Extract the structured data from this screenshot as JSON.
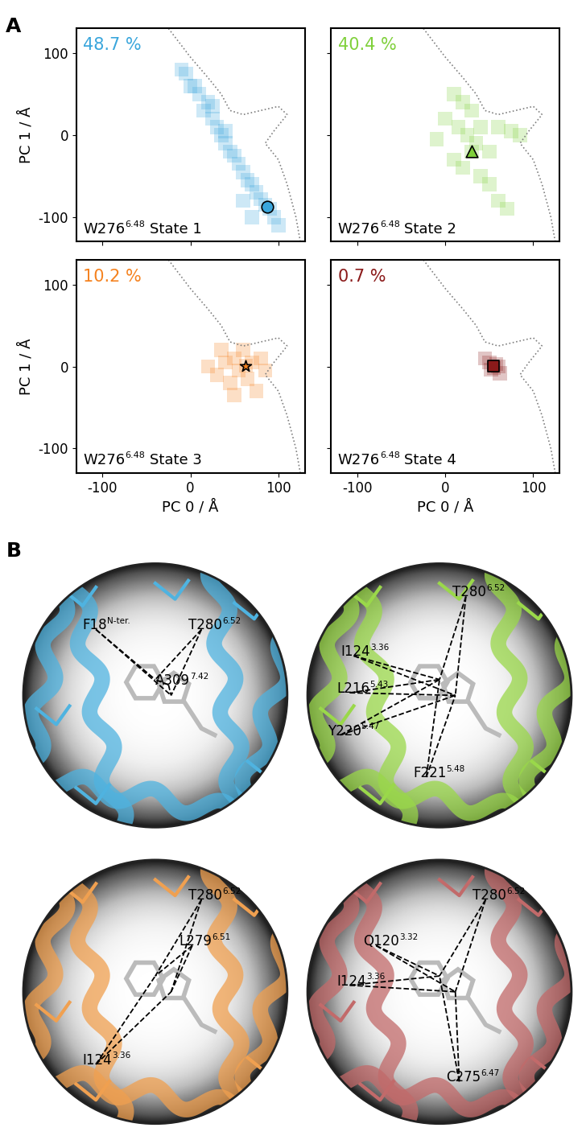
{
  "panel_labels": [
    "A",
    "B"
  ],
  "chart_data": [
    {
      "type": "scatter",
      "annotation": "48.7 %",
      "residue": "W276",
      "residue_superscript": "6.48",
      "title": "State 1",
      "color": "#3aa6dc",
      "marker": "circle",
      "tick_labels": "y",
      "y_label": "PC 1 / Å",
      "x": [
        -10,
        -5,
        0,
        5,
        10,
        20,
        15,
        25,
        30,
        35,
        40,
        45,
        50,
        55,
        60,
        65,
        70,
        75,
        80,
        85,
        90,
        95,
        100,
        70,
        60,
        25,
        40
      ],
      "y": [
        80,
        75,
        60,
        60,
        50,
        40,
        30,
        20,
        10,
        0,
        -10,
        -20,
        -25,
        -35,
        -45,
        -55,
        -60,
        -70,
        -78,
        -85,
        -90,
        -100,
        -110,
        -100,
        -80,
        35,
        5
      ],
      "marker_point": {
        "x": 87,
        "y": -87
      },
      "boundary": {
        "x": [
          -25,
          0,
          20,
          35,
          45,
          60,
          80,
          100,
          110,
          95,
          85,
          100,
          110,
          120,
          125
        ],
        "y": [
          130,
          95,
          70,
          50,
          30,
          25,
          30,
          35,
          25,
          5,
          -10,
          -30,
          -60,
          -100,
          -130
        ],
        "line_style": "dotted"
      },
      "xlim": [
        -130,
        130
      ],
      "ylim": [
        -130,
        130
      ],
      "xticks": [
        -100,
        0,
        100
      ],
      "yticks": [
        -100,
        0,
        100
      ]
    },
    {
      "type": "scatter",
      "annotation": "40.4 %",
      "residue": "W276",
      "residue_superscript": "6.48",
      "title": "State 2",
      "color": "#7fd03a",
      "marker": "triangle",
      "tick_labels": false,
      "x": [
        10,
        20,
        30,
        0,
        15,
        40,
        60,
        25,
        35,
        50,
        30,
        10,
        20,
        40,
        50,
        60,
        70,
        75,
        85,
        -10
      ],
      "y": [
        50,
        40,
        30,
        20,
        10,
        10,
        10,
        0,
        -10,
        -20,
        -20,
        -30,
        -40,
        -50,
        -60,
        -80,
        -90,
        5,
        0,
        -5
      ],
      "marker_point": {
        "x": 30,
        "y": -20
      },
      "boundary": {
        "x": [
          -25,
          0,
          20,
          35,
          45,
          60,
          80,
          100,
          110,
          95,
          85,
          100,
          110,
          120,
          125
        ],
        "y": [
          130,
          95,
          70,
          50,
          30,
          25,
          30,
          35,
          25,
          5,
          -10,
          -30,
          -60,
          -100,
          -130
        ],
        "line_style": "dotted"
      },
      "xlim": [
        -130,
        130
      ],
      "ylim": [
        -130,
        130
      ],
      "xticks": [
        -100,
        0,
        100
      ],
      "yticks": [
        -100,
        0,
        100
      ]
    },
    {
      "type": "scatter",
      "annotation": "10.2 %",
      "residue": "W276",
      "residue_superscript": "6.48",
      "title": "State 3",
      "color": "#f5821f",
      "marker": "star",
      "tick_labels": true,
      "x_label": "PC 0 / Å",
      "y_label": "PC 1 / Å",
      "x": [
        20,
        30,
        40,
        45,
        50,
        55,
        60,
        63,
        65,
        70,
        75,
        80,
        85,
        50,
        35
      ],
      "y": [
        0,
        -10,
        5,
        -20,
        10,
        -5,
        20,
        1,
        -15,
        5,
        -30,
        10,
        -5,
        -35,
        20
      ],
      "marker_point": {
        "x": 63,
        "y": 1
      },
      "boundary": {
        "x": [
          -25,
          0,
          20,
          35,
          45,
          60,
          80,
          100,
          110,
          95,
          85,
          100,
          110,
          120,
          125
        ],
        "y": [
          130,
          95,
          70,
          50,
          30,
          25,
          30,
          35,
          25,
          5,
          -10,
          -30,
          -60,
          -100,
          -130
        ],
        "line_style": "dotted"
      },
      "xlim": [
        -130,
        130
      ],
      "ylim": [
        -130,
        130
      ],
      "xticks": [
        -100,
        0,
        100
      ],
      "yticks": [
        -100,
        0,
        100
      ]
    },
    {
      "type": "scatter",
      "annotation": "0.7 %",
      "residue": "W276",
      "residue_superscript": "6.48",
      "title": "State 4",
      "color": "#8b1a1a",
      "marker": "square",
      "tick_labels": "x",
      "x_label": "PC 0 / Å",
      "x": [
        50,
        55,
        58,
        52,
        60,
        45,
        62
      ],
      "y": [
        5,
        -2,
        3,
        -4,
        0,
        10,
        -8
      ],
      "marker_point": {
        "x": 55,
        "y": 1
      },
      "boundary": {
        "x": [
          -25,
          0,
          20,
          35,
          45,
          60,
          80,
          100,
          110,
          95,
          85,
          100,
          110,
          120,
          125
        ],
        "y": [
          130,
          95,
          70,
          50,
          30,
          25,
          30,
          35,
          25,
          5,
          -10,
          -30,
          -60,
          -100,
          -130
        ],
        "line_style": "dotted"
      },
      "xlim": [
        -130,
        130
      ],
      "ylim": [
        -130,
        130
      ],
      "xticks": [
        -100,
        0,
        100
      ],
      "yticks": [
        -100,
        0,
        100
      ]
    }
  ],
  "structures": [
    {
      "color": "#4fb3e0",
      "labels": [
        {
          "residue": "F18",
          "superscript": "N-ter."
        },
        {
          "residue": "T280",
          "superscript": "6.52"
        },
        {
          "residue": "A309",
          "superscript": "7.42"
        }
      ]
    },
    {
      "color": "#9ad84a",
      "labels": [
        {
          "residue": "T280",
          "superscript": "6.52"
        },
        {
          "residue": "I124",
          "superscript": "3.36"
        },
        {
          "residue": "L216",
          "superscript": "5.43"
        },
        {
          "residue": "Y220",
          "superscript": "5.47"
        },
        {
          "residue": "F221",
          "superscript": "5.48"
        }
      ]
    },
    {
      "color": "#f0a050",
      "labels": [
        {
          "residue": "T280",
          "superscript": "6.52"
        },
        {
          "residue": "L279",
          "superscript": "6.51"
        },
        {
          "residue": "I124",
          "superscript": "3.36"
        }
      ]
    },
    {
      "color": "#c26a6a",
      "labels": [
        {
          "residue": "T280",
          "superscript": "6.52"
        },
        {
          "residue": "Q120",
          "superscript": "3.32"
        },
        {
          "residue": "I124",
          "superscript": "3.36"
        },
        {
          "residue": "C275",
          "superscript": "6.47"
        }
      ]
    }
  ]
}
